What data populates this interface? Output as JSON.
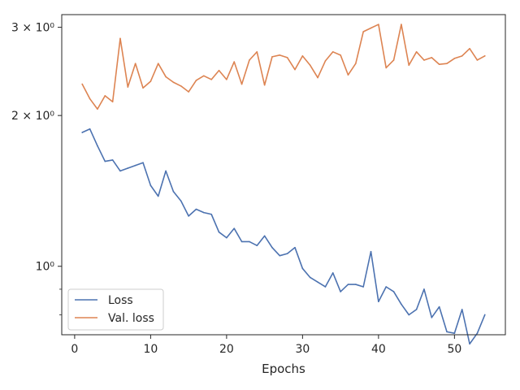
{
  "chart_data": {
    "type": "line",
    "title": "",
    "xlabel": "Epochs",
    "ylabel": "",
    "yscale": "log",
    "xlim": [
      -1.7,
      56.7
    ],
    "ylim": [
      0.73,
      3.18
    ],
    "grid": false,
    "legend_position": "lower-left",
    "x_ticks": [
      0,
      10,
      20,
      30,
      40,
      50
    ],
    "x_tick_labels": [
      "0",
      "10",
      "20",
      "30",
      "40",
      "50"
    ],
    "y_major_ticks": [
      1,
      2,
      3
    ],
    "y_tick_labels": [
      "10⁰",
      "2 × 10⁰",
      "3 × 10⁰"
    ],
    "y_minor_ticks": [
      0.8,
      0.9
    ],
    "x": [
      1,
      2,
      3,
      4,
      5,
      6,
      7,
      8,
      9,
      10,
      11,
      12,
      13,
      14,
      15,
      16,
      17,
      18,
      19,
      20,
      21,
      22,
      23,
      24,
      25,
      26,
      27,
      28,
      29,
      30,
      31,
      32,
      33,
      34,
      35,
      36,
      37,
      38,
      39,
      40,
      41,
      42,
      43,
      44,
      45,
      46,
      47,
      48,
      49,
      50,
      51,
      52,
      53,
      54
    ],
    "series": [
      {
        "name": "Loss",
        "color": "#4c72b0",
        "values": [
          1.85,
          1.88,
          1.74,
          1.62,
          1.63,
          1.55,
          1.57,
          1.59,
          1.61,
          1.45,
          1.38,
          1.55,
          1.41,
          1.35,
          1.26,
          1.3,
          1.28,
          1.27,
          1.17,
          1.14,
          1.19,
          1.12,
          1.12,
          1.1,
          1.15,
          1.09,
          1.05,
          1.06,
          1.09,
          0.99,
          0.95,
          0.93,
          0.91,
          0.97,
          0.89,
          0.92,
          0.92,
          0.91,
          1.07,
          0.85,
          0.91,
          0.89,
          0.84,
          0.8,
          0.82,
          0.9,
          0.79,
          0.83,
          0.74,
          0.735,
          0.82,
          0.7,
          0.735,
          0.8
        ]
      },
      {
        "name": "Val. loss",
        "color": "#dd8452",
        "values": [
          2.31,
          2.16,
          2.06,
          2.19,
          2.13,
          2.85,
          2.28,
          2.54,
          2.27,
          2.34,
          2.54,
          2.39,
          2.33,
          2.29,
          2.23,
          2.35,
          2.4,
          2.36,
          2.46,
          2.36,
          2.56,
          2.31,
          2.58,
          2.68,
          2.3,
          2.62,
          2.64,
          2.61,
          2.47,
          2.63,
          2.52,
          2.38,
          2.57,
          2.68,
          2.64,
          2.41,
          2.54,
          2.94,
          2.99,
          3.04,
          2.49,
          2.58,
          3.04,
          2.52,
          2.68,
          2.58,
          2.61,
          2.53,
          2.54,
          2.6,
          2.63,
          2.72,
          2.58,
          2.63
        ]
      }
    ],
    "legend_entries": [
      "Loss",
      "Val. loss"
    ]
  }
}
